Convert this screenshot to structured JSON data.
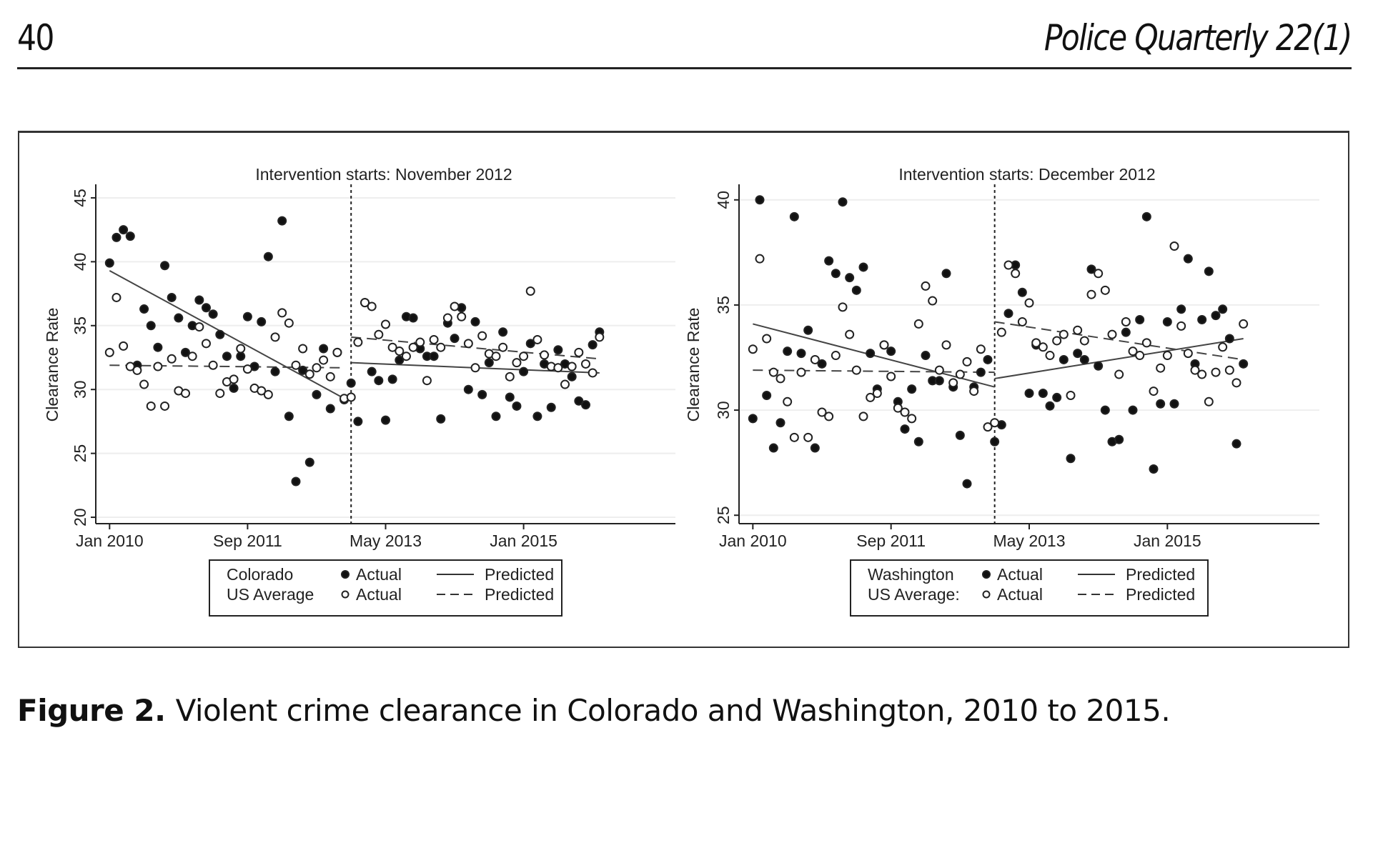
{
  "header": {
    "page_number": "40",
    "journal": "Police Quarterly 22(1)"
  },
  "caption": {
    "label": "Figure 2.",
    "text": "Violent crime clearance in Colorado and Washington, 2010 to 2015."
  },
  "chart_data": [
    {
      "type": "scatter",
      "title": "Intervention starts: November 2012",
      "ylabel": "Clearance Rate",
      "xlabel": "",
      "ylim": [
        19.5,
        45.5
      ],
      "yticks": [
        "20",
        "25",
        "30",
        "35",
        "40",
        "45"
      ],
      "xlim": [
        "2009-11",
        "2016-11"
      ],
      "xticks": [
        {
          "label": "Jan 2010",
          "x": "2010-01"
        },
        {
          "label": "Sep 2011",
          "x": "2011-09"
        },
        {
          "label": "May 2013",
          "x": "2013-05"
        },
        {
          "label": "Jan 2015",
          "x": "2015-01"
        }
      ],
      "intervention": "2012-11",
      "grid": true,
      "legend": {
        "placement": "bottom",
        "rows": [
          [
            "Colorado",
            "Actual",
            "Predicted"
          ],
          [
            "US Average",
            "Actual",
            "Predicted"
          ]
        ]
      },
      "x": [
        "2010-01",
        "2010-02",
        "2010-03",
        "2010-04",
        "2010-05",
        "2010-06",
        "2010-07",
        "2010-08",
        "2010-09",
        "2010-10",
        "2010-11",
        "2010-12",
        "2011-01",
        "2011-02",
        "2011-03",
        "2011-04",
        "2011-05",
        "2011-06",
        "2011-07",
        "2011-08",
        "2011-09",
        "2011-10",
        "2011-11",
        "2011-12",
        "2012-01",
        "2012-02",
        "2012-03",
        "2012-04",
        "2012-05",
        "2012-06",
        "2012-07",
        "2012-08",
        "2012-09",
        "2012-10",
        "2012-11",
        "2012-12",
        "2013-01",
        "2013-02",
        "2013-03",
        "2013-04",
        "2013-05",
        "2013-06",
        "2013-07",
        "2013-08",
        "2013-09",
        "2013-10",
        "2013-11",
        "2013-12",
        "2014-01",
        "2014-02",
        "2014-03",
        "2014-04",
        "2014-05",
        "2014-06",
        "2014-07",
        "2014-08",
        "2014-09",
        "2014-10",
        "2014-11",
        "2014-12",
        "2015-01",
        "2015-02",
        "2015-03",
        "2015-04",
        "2015-05",
        "2015-06",
        "2015-07",
        "2015-08",
        "2015-09",
        "2015-10",
        "2015-11",
        "2015-12"
      ],
      "series": [
        {
          "name": "Colorado Actual",
          "marker": "filled",
          "values": [
            39.9,
            41.9,
            42.5,
            42.0,
            31.9,
            36.3,
            35.0,
            33.3,
            39.7,
            37.2,
            35.6,
            32.9,
            35.0,
            37.0,
            36.4,
            35.9,
            34.3,
            32.6,
            30.1,
            32.6,
            35.7,
            31.8,
            35.3,
            40.4,
            31.4,
            43.2,
            27.9,
            22.8,
            31.5,
            24.3,
            29.6,
            33.2,
            28.5,
            32.9,
            29.2,
            30.5,
            27.5,
            36.8,
            31.4,
            30.7,
            27.6,
            30.8,
            32.3,
            35.7,
            35.6,
            33.2,
            32.6,
            32.6,
            27.7,
            35.2,
            34.0,
            36.4,
            30.0,
            35.3,
            29.6,
            32.1,
            27.9,
            34.5,
            29.4,
            28.7,
            31.4,
            33.6,
            27.9,
            32.0,
            28.6,
            33.1,
            32.0,
            31.0,
            29.1,
            28.8,
            33.5,
            34.5
          ]
        },
        {
          "name": "US Average Actual",
          "marker": "hollow",
          "values": [
            32.9,
            37.2,
            33.4,
            31.8,
            31.5,
            30.4,
            28.7,
            31.8,
            28.7,
            32.4,
            29.9,
            29.7,
            32.6,
            34.9,
            33.6,
            31.9,
            29.7,
            30.6,
            30.8,
            33.2,
            31.6,
            30.1,
            29.9,
            29.6,
            34.1,
            36.0,
            35.2,
            31.9,
            33.2,
            31.2,
            31.7,
            32.3,
            31.0,
            32.9,
            29.3,
            29.4,
            33.7,
            36.8,
            36.5,
            34.3,
            35.1,
            33.3,
            33.0,
            32.6,
            33.3,
            33.7,
            30.7,
            33.9,
            33.3,
            35.6,
            36.5,
            35.7,
            33.6,
            31.7,
            34.2,
            32.8,
            32.6,
            33.3,
            31.0,
            32.1,
            32.6,
            37.7,
            33.9,
            32.7,
            31.8,
            31.7,
            30.4,
            31.8,
            32.9,
            32.0,
            31.3,
            34.1
          ]
        }
      ],
      "predicted": [
        {
          "name": "Colorado Predicted",
          "style": "solid",
          "segments": [
            [
              [
                "2010-01",
                39.3
              ],
              [
                "2012-11",
                29.3
              ]
            ],
            [
              [
                "2012-12",
                32.1
              ],
              [
                "2015-12",
                31.3
              ]
            ]
          ]
        },
        {
          "name": "US Average Predicted",
          "style": "dashed",
          "segments": [
            [
              [
                "2010-01",
                31.9
              ],
              [
                "2012-11",
                31.7
              ]
            ],
            [
              [
                "2012-12",
                34.1
              ],
              [
                "2015-12",
                32.4
              ]
            ]
          ]
        }
      ]
    },
    {
      "type": "scatter",
      "title": "Intervention starts: December 2012",
      "ylabel": "Clearance Rate",
      "xlabel": "",
      "ylim": [
        24.6,
        40.4
      ],
      "yticks": [
        "25",
        "30",
        "35",
        "40"
      ],
      "xlim": [
        "2009-11",
        "2016-11"
      ],
      "xticks": [
        {
          "label": "Jan 2010",
          "x": "2010-01"
        },
        {
          "label": "Sep 2011",
          "x": "2011-09"
        },
        {
          "label": "May 2013",
          "x": "2013-05"
        },
        {
          "label": "Jan 2015",
          "x": "2015-01"
        }
      ],
      "intervention": "2012-12",
      "grid": true,
      "legend": {
        "placement": "bottom",
        "rows": [
          [
            "Washington",
            "Actual",
            "Predicted"
          ],
          [
            "US Average:",
            "Actual",
            "Predicted"
          ]
        ]
      },
      "x": [
        "2010-01",
        "2010-02",
        "2010-03",
        "2010-04",
        "2010-05",
        "2010-06",
        "2010-07",
        "2010-08",
        "2010-09",
        "2010-10",
        "2010-11",
        "2010-12",
        "2011-01",
        "2011-02",
        "2011-03",
        "2011-04",
        "2011-05",
        "2011-06",
        "2011-07",
        "2011-08",
        "2011-09",
        "2011-10",
        "2011-11",
        "2011-12",
        "2012-01",
        "2012-02",
        "2012-03",
        "2012-04",
        "2012-05",
        "2012-06",
        "2012-07",
        "2012-08",
        "2012-09",
        "2012-10",
        "2012-11",
        "2012-12",
        "2013-01",
        "2013-02",
        "2013-03",
        "2013-04",
        "2013-05",
        "2013-06",
        "2013-07",
        "2013-08",
        "2013-09",
        "2013-10",
        "2013-11",
        "2013-12",
        "2014-01",
        "2014-02",
        "2014-03",
        "2014-04",
        "2014-05",
        "2014-06",
        "2014-07",
        "2014-08",
        "2014-09",
        "2014-10",
        "2014-11",
        "2014-12",
        "2015-01",
        "2015-02",
        "2015-03",
        "2015-04",
        "2015-05",
        "2015-06",
        "2015-07",
        "2015-08",
        "2015-09",
        "2015-10",
        "2015-11",
        "2015-12"
      ],
      "series": [
        {
          "name": "Washington Actual",
          "marker": "filled",
          "values": [
            29.6,
            40.0,
            30.7,
            28.2,
            29.4,
            32.8,
            39.2,
            32.7,
            33.8,
            28.2,
            32.2,
            37.1,
            36.5,
            39.9,
            36.3,
            35.7,
            36.8,
            32.7,
            31.0,
            33.1,
            32.8,
            30.4,
            29.1,
            31.0,
            28.5,
            32.6,
            31.4,
            31.4,
            36.5,
            31.1,
            28.8,
            26.5,
            31.1,
            31.8,
            32.4,
            28.5,
            29.3,
            34.6,
            36.9,
            35.6,
            30.8,
            33.1,
            30.8,
            30.2,
            30.6,
            32.4,
            27.7,
            32.7,
            32.4,
            36.7,
            32.1,
            30.0,
            28.5,
            28.6,
            33.7,
            30.0,
            34.3,
            39.2,
            27.2,
            30.3,
            34.2,
            30.3,
            34.8,
            37.2,
            32.2,
            34.3,
            36.6,
            34.5,
            34.8,
            33.4,
            28.4,
            32.2
          ]
        },
        {
          "name": "US Average Actual",
          "marker": "hollow",
          "values": [
            32.9,
            37.2,
            33.4,
            31.8,
            31.5,
            30.4,
            28.7,
            31.8,
            28.7,
            32.4,
            29.9,
            29.7,
            32.6,
            34.9,
            33.6,
            31.9,
            29.7,
            30.6,
            30.8,
            33.1,
            31.6,
            30.1,
            29.9,
            29.6,
            34.1,
            35.9,
            35.2,
            31.9,
            33.1,
            31.3,
            31.7,
            32.3,
            30.9,
            32.9,
            29.2,
            29.4,
            33.7,
            36.9,
            36.5,
            34.2,
            35.1,
            33.2,
            33.0,
            32.6,
            33.3,
            33.6,
            30.7,
            33.8,
            33.3,
            35.5,
            36.5,
            35.7,
            33.6,
            31.7,
            34.2,
            32.8,
            32.6,
            33.2,
            30.9,
            32.0,
            32.6,
            37.8,
            34.0,
            32.7,
            31.9,
            31.7,
            30.4,
            31.8,
            33.0,
            31.9,
            31.3,
            34.1
          ]
        }
      ],
      "predicted": [
        {
          "name": "Washington Predicted",
          "style": "solid",
          "segments": [
            [
              [
                "2010-01",
                34.1
              ],
              [
                "2012-12",
                31.1
              ]
            ],
            [
              [
                "2012-12",
                31.5
              ],
              [
                "2015-12",
                33.4
              ]
            ]
          ]
        },
        {
          "name": "US Average Predicted",
          "style": "dashed",
          "segments": [
            [
              [
                "2010-01",
                31.9
              ],
              [
                "2012-12",
                31.8
              ]
            ],
            [
              [
                "2012-12",
                34.2
              ],
              [
                "2015-12",
                32.4
              ]
            ]
          ]
        }
      ]
    }
  ]
}
